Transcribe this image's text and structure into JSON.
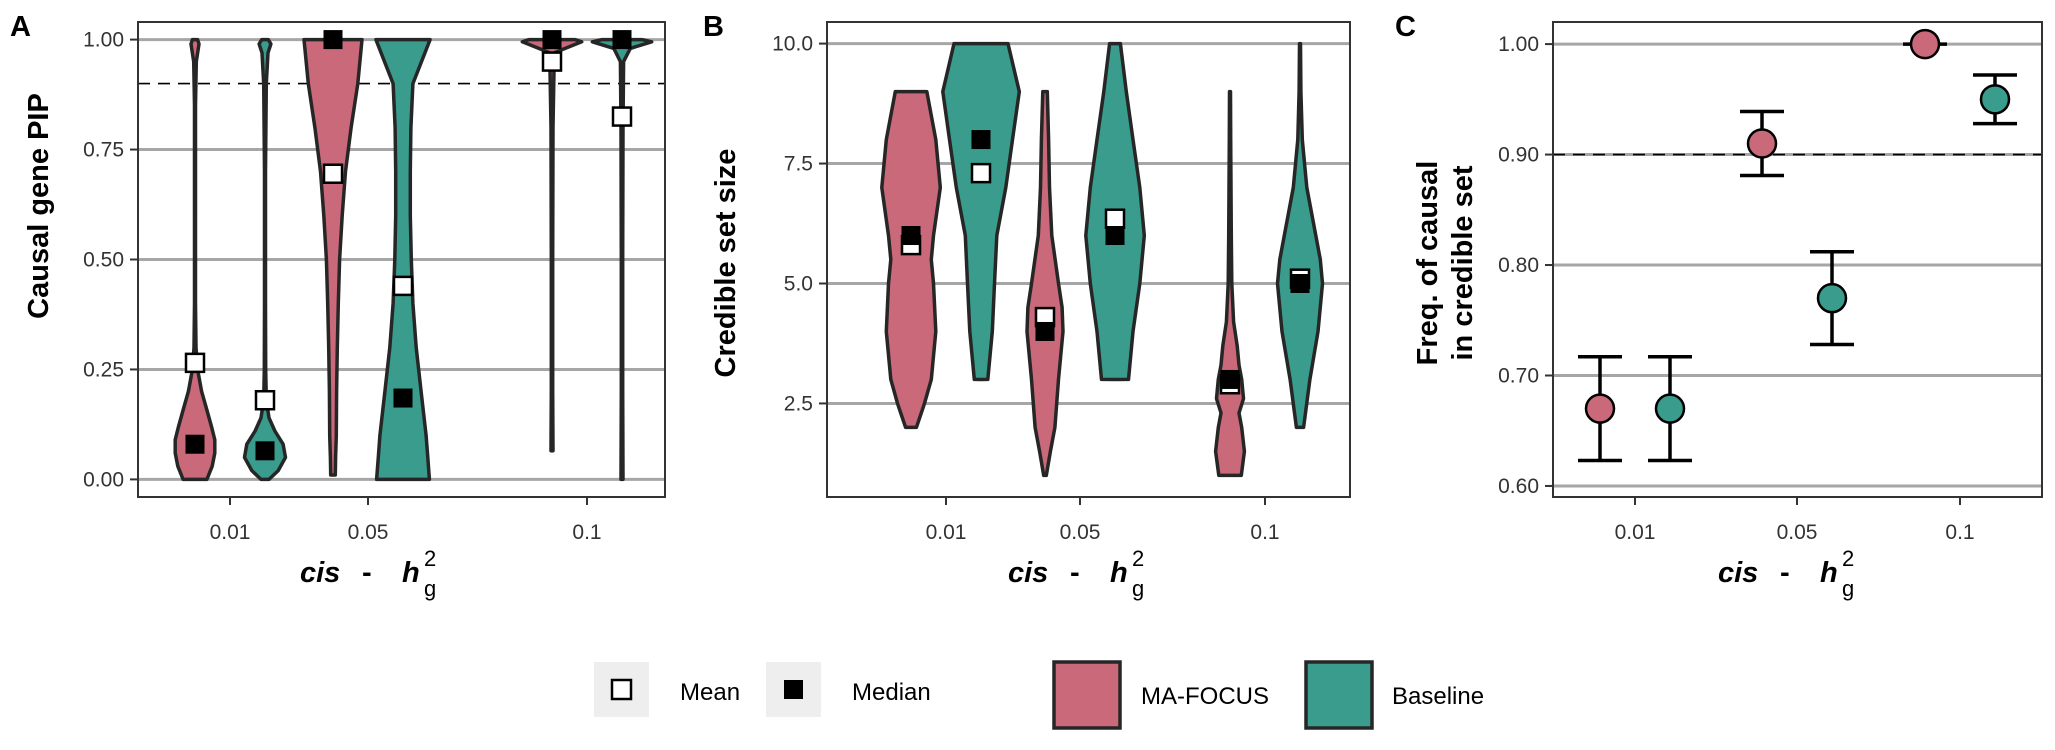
{
  "legend": {
    "mean_label": "Mean",
    "median_label": "Median",
    "groups": [
      {
        "name": "MA-FOCUS",
        "color": "#c9697a"
      },
      {
        "name": "Baseline",
        "color": "#3a9c8c"
      }
    ]
  },
  "xaxis_title": {
    "main": "cis",
    "sep": " - ",
    "h": "h",
    "sub": "g",
    "sup": "2"
  },
  "chart_data": [
    {
      "type": "violin",
      "panel_label": "A",
      "ylabel": "Causal gene PIP",
      "categories": [
        "0.01",
        "0.05",
        "0.1"
      ],
      "ylim": [
        -0.04,
        1.04
      ],
      "yticks": [
        "0.00",
        "0.25",
        "0.50",
        "0.75",
        "1.00"
      ],
      "grid": true,
      "reference_line": 0.9,
      "series": [
        {
          "name": "MA-FOCUS",
          "color": "#c9697a",
          "mean": [
            0.265,
            0.695,
            0.95
          ],
          "median": [
            0.08,
            1.0,
            1.0
          ],
          "range": [
            [
              0,
              1
            ],
            [
              0.01,
              1
            ],
            [
              0.065,
              1
            ]
          ],
          "density": [
            [
              [
                0,
                0.36
              ],
              [
                0.03,
                0.52
              ],
              [
                0.06,
                0.6
              ],
              [
                0.09,
                0.6
              ],
              [
                0.12,
                0.5
              ],
              [
                0.16,
                0.35
              ],
              [
                0.2,
                0.2
              ],
              [
                0.25,
                0.08
              ],
              [
                0.3,
                0.03
              ],
              [
                0.4,
                0.015
              ],
              [
                0.6,
                0.015
              ],
              [
                0.85,
                0.015
              ],
              [
                0.95,
                0.04
              ],
              [
                0.99,
                0.12
              ],
              [
                1,
                0.08
              ]
            ],
            [
              [
                0.01,
                0.07
              ],
              [
                0.05,
                0.08
              ],
              [
                0.1,
                0.1
              ],
              [
                0.2,
                0.11
              ],
              [
                0.3,
                0.13
              ],
              [
                0.4,
                0.16
              ],
              [
                0.5,
                0.2
              ],
              [
                0.6,
                0.28
              ],
              [
                0.7,
                0.38
              ],
              [
                0.8,
                0.55
              ],
              [
                0.9,
                0.75
              ],
              [
                1,
                0.88
              ]
            ],
            [
              [
                0.065,
                0.03
              ],
              [
                0.2,
                0.02
              ],
              [
                0.5,
                0.02
              ],
              [
                0.8,
                0.03
              ],
              [
                0.97,
                0.07
              ],
              [
                0.995,
                0.9
              ],
              [
                1,
                0.7
              ]
            ]
          ]
        },
        {
          "name": "Baseline",
          "color": "#3a9c8c",
          "mean": [
            0.18,
            0.44,
            0.825
          ],
          "median": [
            0.065,
            0.185,
            1.0
          ],
          "range": [
            [
              0,
              1
            ],
            [
              0,
              1
            ],
            [
              0,
              1
            ]
          ],
          "density": [
            [
              [
                0,
                0.12
              ],
              [
                0.02,
                0.4
              ],
              [
                0.05,
                0.62
              ],
              [
                0.08,
                0.55
              ],
              [
                0.11,
                0.3
              ],
              [
                0.14,
                0.12
              ],
              [
                0.18,
                0.04
              ],
              [
                0.25,
                0.02
              ],
              [
                0.4,
                0.015
              ],
              [
                0.7,
                0.015
              ],
              [
                0.9,
                0.04
              ],
              [
                0.97,
                0.09
              ],
              [
                0.99,
                0.18
              ],
              [
                1,
                0.1
              ]
            ],
            [
              [
                0,
                0.8
              ],
              [
                0.05,
                0.75
              ],
              [
                0.1,
                0.7
              ],
              [
                0.2,
                0.55
              ],
              [
                0.3,
                0.4
              ],
              [
                0.4,
                0.3
              ],
              [
                0.5,
                0.25
              ],
              [
                0.6,
                0.22
              ],
              [
                0.7,
                0.22
              ],
              [
                0.8,
                0.24
              ],
              [
                0.9,
                0.3
              ],
              [
                1,
                0.82
              ]
            ],
            [
              [
                0,
                0.03
              ],
              [
                0.2,
                0.02
              ],
              [
                0.5,
                0.02
              ],
              [
                0.8,
                0.03
              ],
              [
                0.95,
                0.05
              ],
              [
                0.98,
                0.25
              ],
              [
                0.995,
                0.9
              ],
              [
                1,
                0.6
              ]
            ]
          ]
        }
      ]
    },
    {
      "type": "violin",
      "panel_label": "B",
      "ylabel": "Credible set size",
      "categories": [
        "0.01",
        "0.05",
        "0.1"
      ],
      "ylim": [
        0.55,
        10.45
      ],
      "yticks": [
        "2.5",
        "5.0",
        "7.5",
        "10.0"
      ],
      "grid": true,
      "series": [
        {
          "name": "MA-FOCUS",
          "color": "#c9697a",
          "mean": [
            5.8,
            4.3,
            2.9
          ],
          "median": [
            6.0,
            4.0,
            3.0
          ],
          "range": [
            [
              2,
              9
            ],
            [
              1,
              9
            ],
            [
              1,
              9
            ]
          ],
          "density": [
            [
              [
                2,
                0.12
              ],
              [
                2.5,
                0.3
              ],
              [
                3,
                0.45
              ],
              [
                4,
                0.55
              ],
              [
                5,
                0.5
              ],
              [
                5.5,
                0.45
              ],
              [
                6,
                0.5
              ],
              [
                7,
                0.65
              ],
              [
                8,
                0.55
              ],
              [
                9,
                0.35
              ]
            ],
            [
              [
                1,
                0.03
              ],
              [
                1.5,
                0.12
              ],
              [
                2,
                0.22
              ],
              [
                3,
                0.3
              ],
              [
                4,
                0.4
              ],
              [
                4.5,
                0.38
              ],
              [
                5,
                0.3
              ],
              [
                6,
                0.15
              ],
              [
                7,
                0.1
              ],
              [
                8,
                0.08
              ],
              [
                9,
                0.05
              ]
            ],
            [
              [
                1,
                0.25
              ],
              [
                1.5,
                0.32
              ],
              [
                2,
                0.26
              ],
              [
                2.3,
                0.2
              ],
              [
                2.6,
                0.3
              ],
              [
                3,
                0.26
              ],
              [
                3.3,
                0.2
              ],
              [
                3.7,
                0.16
              ],
              [
                4.2,
                0.08
              ],
              [
                5,
                0.04
              ],
              [
                6,
                0.03
              ],
              [
                8,
                0.015
              ],
              [
                9,
                0.01
              ]
            ]
          ]
        },
        {
          "name": "Baseline",
          "color": "#3a9c8c",
          "mean": [
            7.3,
            6.35,
            5.1
          ],
          "median": [
            8.0,
            6.0,
            5.0
          ],
          "range": [
            [
              3,
              10
            ],
            [
              3,
              10
            ],
            [
              2,
              10
            ]
          ],
          "density": [
            [
              [
                3,
                0.15
              ],
              [
                4,
                0.25
              ],
              [
                5,
                0.3
              ],
              [
                6,
                0.35
              ],
              [
                7,
                0.55
              ],
              [
                8,
                0.7
              ],
              [
                9,
                0.85
              ],
              [
                10,
                0.6
              ]
            ],
            [
              [
                3,
                0.3
              ],
              [
                4,
                0.4
              ],
              [
                5,
                0.55
              ],
              [
                6,
                0.65
              ],
              [
                7,
                0.55
              ],
              [
                8,
                0.4
              ],
              [
                9,
                0.25
              ],
              [
                10,
                0.12
              ]
            ],
            [
              [
                2,
                0.08
              ],
              [
                3,
                0.22
              ],
              [
                4,
                0.4
              ],
              [
                5,
                0.5
              ],
              [
                5.5,
                0.45
              ],
              [
                6,
                0.35
              ],
              [
                7,
                0.15
              ],
              [
                8,
                0.05
              ],
              [
                9,
                0.02
              ],
              [
                10,
                0.01
              ]
            ]
          ]
        }
      ]
    },
    {
      "type": "scatter",
      "panel_label": "C",
      "ylabel_lines": [
        "Freq. of causal",
        "in credible set"
      ],
      "categories": [
        "0.01",
        "0.05",
        "0.1"
      ],
      "ylim": [
        0.59,
        1.02
      ],
      "yticks": [
        "0.60",
        "0.70",
        "0.80",
        "0.90",
        "1.00"
      ],
      "grid": true,
      "reference_line": 0.9,
      "series": [
        {
          "name": "MA-FOCUS",
          "color": "#c9697a",
          "values": [
            0.67,
            0.91,
            1.0
          ],
          "error": [
            [
              0.623,
              0.717
            ],
            [
              0.881,
              0.939
            ],
            [
              1.0,
              1.0
            ]
          ]
        },
        {
          "name": "Baseline",
          "color": "#3a9c8c",
          "values": [
            0.67,
            0.77,
            0.95
          ],
          "error": [
            [
              0.623,
              0.717
            ],
            [
              0.728,
              0.812
            ],
            [
              0.928,
              0.972
            ]
          ]
        }
      ]
    }
  ]
}
